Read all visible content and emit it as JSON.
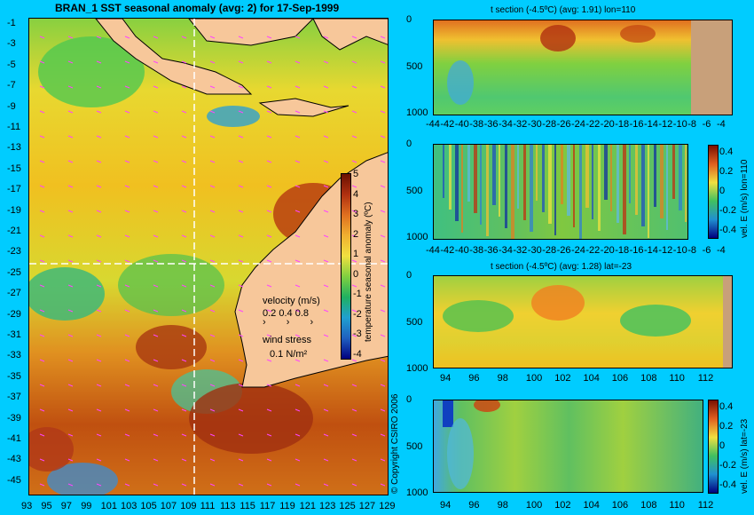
{
  "map": {
    "title": "BRAN_1  SST seasonal anomaly  (avg: 2) for 17-Sep-1999",
    "lat_labels": [
      "-1",
      "-3",
      "-5",
      "-7",
      "-9",
      "-11",
      "-13",
      "-15",
      "-17",
      "-19",
      "-21",
      "-23",
      "-25",
      "-27",
      "-29",
      "-31",
      "-33",
      "-35",
      "-37",
      "-39",
      "-41",
      "-43",
      "-45"
    ],
    "lon_labels": [
      "93",
      "95",
      "97",
      "99",
      "101",
      "103",
      "105",
      "107",
      "109",
      "111",
      "113",
      "115",
      "117",
      "119",
      "121",
      "123",
      "125",
      "127",
      "129"
    ],
    "colorbar_label": "temperature seasonal anomaly (ºC)",
    "colorbar_ticks": [
      "5",
      "4",
      "3",
      "2",
      "1",
      "0",
      "-1",
      "-2",
      "-3",
      "-4"
    ],
    "velocity_legend_title": "velocity (m/s)",
    "velocity_legend_values": "0.2 0.4 0.8",
    "wind_title": "wind stress",
    "wind_value": "0.1 N/m²",
    "copyright": "© Copyright CSIRO 2006"
  },
  "panels": [
    {
      "title": "t section (-4.5ºC) (avg: 1.91) lon=110",
      "colorbar_label": "",
      "colorbar_ticks": []
    },
    {
      "title": "",
      "colorbar_label": "vel. E (m/s) lon=110",
      "colorbar_ticks": [
        "0.4",
        "0.2",
        "0",
        "-0.2",
        "-0.4"
      ]
    },
    {
      "title": "t section (-4.5ºC) (avg: 1.28) lat=-23",
      "colorbar_label": "",
      "colorbar_ticks": []
    },
    {
      "title": "",
      "colorbar_label": "vel. E (m/s) lat=-23",
      "colorbar_ticks": [
        "0.4",
        "0.2",
        "0",
        "-0.2",
        "-0.4"
      ]
    }
  ],
  "depth_ticks": [
    "0",
    "500",
    "1000"
  ],
  "lat_section_ticks": [
    "-44",
    "-42",
    "-40",
    "-38",
    "-36",
    "-34",
    "-32",
    "-30",
    "-28",
    "-26",
    "-24",
    "-22",
    "-20",
    "-18",
    "-16",
    "-14",
    "-12",
    "-10",
    "-8",
    "-6",
    "-4"
  ],
  "lon_section_ticks": [
    "94",
    "96",
    "98",
    "100",
    "102",
    "104",
    "106",
    "108",
    "110",
    "112"
  ],
  "colors": {
    "background": "#00ccff",
    "land": "#f7c79a",
    "section_land": "#c8a07a",
    "arrow": "#ff44ff"
  }
}
